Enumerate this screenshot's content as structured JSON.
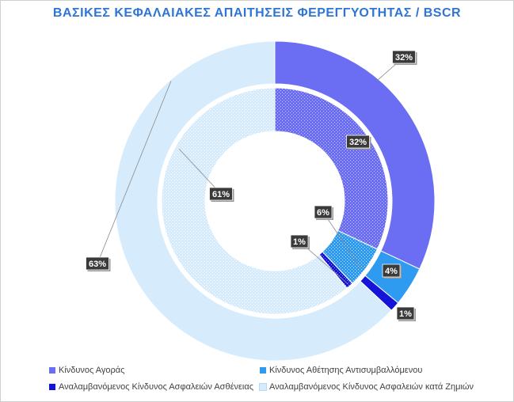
{
  "chart_data": {
    "type": "pie",
    "subtype": "doughnut",
    "title": "ΒΑΣΙΚΕΣ ΚΕΦΑΛΑΙΑΚΕΣ ΑΠΑΙΤΗΣΕΙΣ ΦΕΡΕΓΓΥΟΤΗΤΑΣ / BSCR",
    "categories": [
      "Κίνδυνος Αγοράς",
      "Κίνδυνος Αθέτησης Αντισυμβαλλόμενου",
      "Αναλαμβανόμενος Κίνδυνος Ασφαλειών Ασθένειας",
      "Αναλαμβανόμενος Κίνδυνος Ασφαλειών κατά Ζημιών"
    ],
    "colors": [
      "#6b6ef2",
      "#2f9bf0",
      "#1515d9",
      "#d6ecfc"
    ],
    "series": [
      {
        "ring": "outer",
        "values": [
          32,
          4,
          1,
          63
        ],
        "labels": [
          "32%",
          "4%",
          "1%",
          "63%"
        ]
      },
      {
        "ring": "inner",
        "values": [
          32,
          6,
          1,
          61
        ],
        "labels": [
          "32%",
          "6%",
          "1%",
          "61%"
        ]
      }
    ],
    "legend_position": "bottom"
  }
}
